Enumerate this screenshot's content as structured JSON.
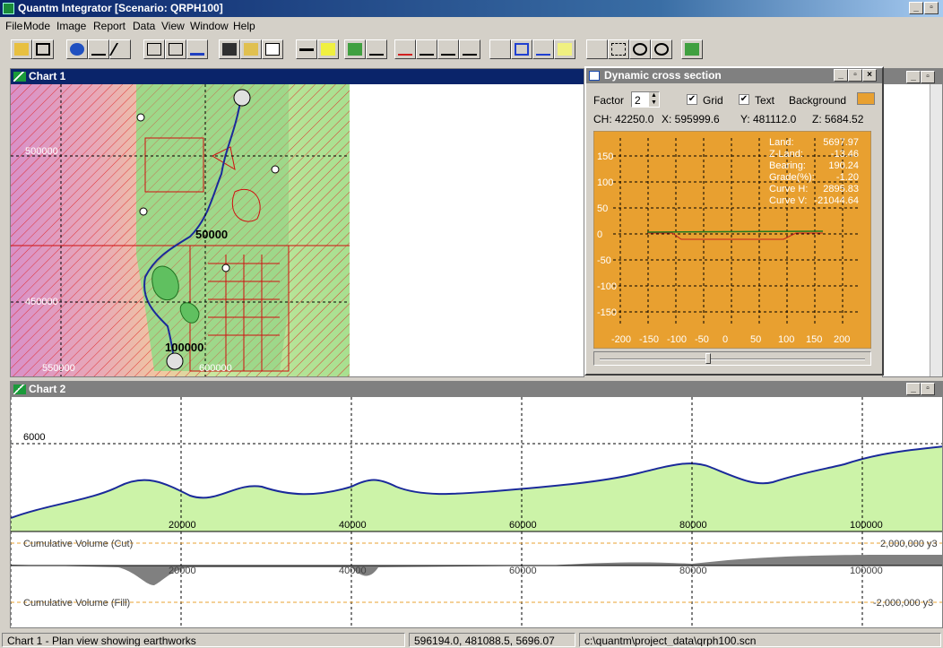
{
  "app": {
    "title": "Quantm Integrator [Scenario: QRPH100]"
  },
  "menu": [
    "File",
    "Mode",
    "Image",
    "Report",
    "Data",
    "View",
    "Window",
    "Help"
  ],
  "chart1": {
    "title": "Chart 1",
    "grid_labels": {
      "y_upper": "500000",
      "y_lower": "450000",
      "x_left": "550000",
      "x_right": "600000"
    },
    "chainage_labels": [
      "50000",
      "100000"
    ]
  },
  "cross_section": {
    "title": "Dynamic cross section",
    "factor_label": "Factor",
    "factor_value": "2",
    "grid_label": "Grid",
    "text_label": "Text",
    "background_label": "Background",
    "background_color": "#e8a030",
    "coords": {
      "ch": "CH: 42250.0",
      "x": "X: 595999.6",
      "y": "Y: 481112.0",
      "z": "Z: 5684.52"
    },
    "info": [
      {
        "label": "Land:",
        "value": "5697.97"
      },
      {
        "label": "Z-Land:",
        "value": "-13.46"
      },
      {
        "label": "Bearing:",
        "value": "190.24"
      },
      {
        "label": "Grade(%):",
        "value": "-1.20"
      },
      {
        "label": "Curve H:",
        "value": "2895.83"
      },
      {
        "label": "Curve V:",
        "value": "-21044.64"
      }
    ],
    "y_ticks": [
      "150",
      "100",
      "50",
      "0",
      "-50",
      "-100",
      "-150"
    ],
    "x_ticks": [
      "-200",
      "-150",
      "-100",
      "-50",
      "0",
      "50",
      "100",
      "150",
      "200"
    ]
  },
  "chart2": {
    "title": "Chart 2",
    "elevation_label": "6000",
    "x_ticks": [
      "20000",
      "40000",
      "60000",
      "80000",
      "100000"
    ],
    "cut_label": "Cumulative Volume (Cut)",
    "cut_value": "2,000,000 y3",
    "fill_label": "Cumulative Volume (Fill)",
    "fill_value": "-2,000,000 y3"
  },
  "status": {
    "description": "Chart 1 - Plan view showing earthworks",
    "coords": "596194.0, 481088.5, 5696.07",
    "path": "c:\\quantm\\project_data\\qrph100.scn"
  },
  "colors": {
    "title_active": "#0a246a",
    "chart_bg": "#ffffff",
    "terrain_fill": "#c8f0a0",
    "profile_line": "#1a2a9a",
    "accent": "#e8a030"
  }
}
